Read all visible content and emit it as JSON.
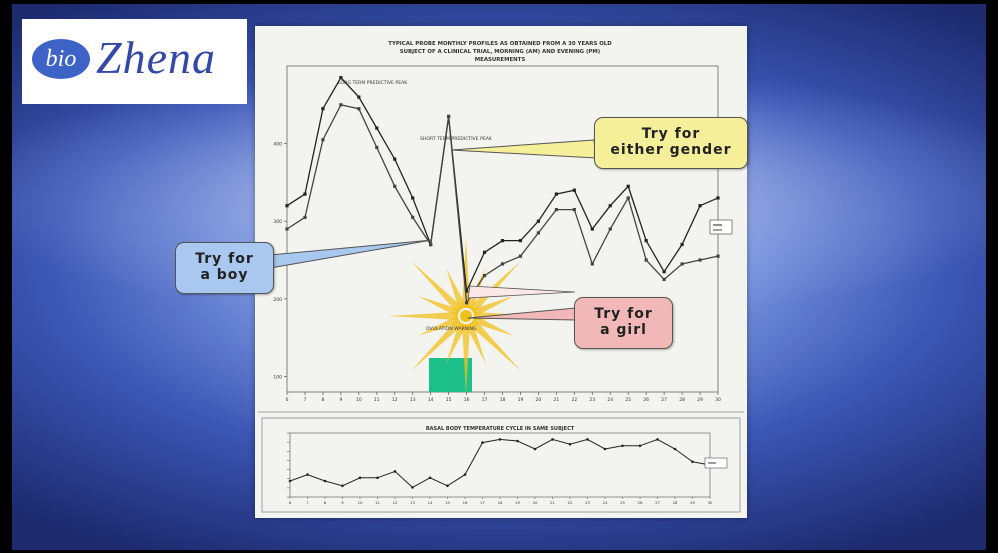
{
  "logo": {
    "bio": "bio",
    "name": "Zhena"
  },
  "callouts": {
    "either": {
      "line1": "Try for",
      "line2": "either gender"
    },
    "boy": {
      "line1": "Try for",
      "line2": "a boy"
    },
    "girl": {
      "line1": "Try for",
      "line2": "a girl"
    }
  },
  "colors": {
    "highlight": "#1ec08a",
    "sun": "#f2c01a",
    "either": "#f5ef9a",
    "boy": "#a8c8ef",
    "girl": "#f2b8b8"
  },
  "chart_data": [
    {
      "type": "line",
      "title": "TYPICAL PROBE MONTHLY PROFILES AS OBTAINED FROM A 30 YEARS OLD SUBJECT OF A CLINICAL TRIAL, MORNING (AM) AND EVENING (PM) MEASUREMENTS",
      "annotations": [
        "LONG TERM PREDICTIVE PEAK",
        "SHORT TERM PREDICTIVE PEAK",
        "OVULATION WARNING"
      ],
      "x": [
        6,
        7,
        8,
        9,
        10,
        11,
        12,
        13,
        14,
        15,
        16,
        17,
        18,
        19,
        20,
        21,
        22,
        23,
        24,
        25,
        26,
        27,
        28,
        29,
        30
      ],
      "ylim": [
        80,
        500
      ],
      "yticks": [
        100,
        200,
        300,
        400
      ],
      "series": [
        {
          "name": "",
          "values": [
            320,
            335,
            445,
            485,
            460,
            420,
            380,
            330,
            270,
            435,
            210,
            260,
            275,
            275,
            300,
            335,
            340,
            290,
            320,
            345,
            275,
            235,
            270,
            320,
            330
          ]
        },
        {
          "name": "",
          "values": [
            290,
            305,
            405,
            450,
            445,
            395,
            345,
            305,
            270,
            435,
            195,
            230,
            245,
            255,
            285,
            315,
            315,
            245,
            290,
            330,
            250,
            225,
            245,
            250,
            255
          ]
        }
      ]
    },
    {
      "type": "line",
      "title": "BASAL BODY TEMPERATURE CYCLE IN SAME SUBJECT",
      "x": [
        6,
        7,
        8,
        9,
        10,
        11,
        12,
        13,
        14,
        15,
        16,
        17,
        18,
        19,
        20,
        21,
        22,
        23,
        24,
        25,
        26,
        27,
        28,
        29,
        30
      ],
      "ylim": [
        96.8,
        98.8
      ],
      "series": [
        {
          "name": "",
          "values": [
            97.3,
            97.5,
            97.3,
            97.15,
            97.4,
            97.4,
            97.6,
            97.1,
            97.4,
            97.15,
            97.5,
            98.5,
            98.6,
            98.55,
            98.3,
            98.6,
            98.45,
            98.6,
            98.3,
            98.4,
            98.4,
            98.6,
            98.3,
            97.9,
            97.8
          ]
        }
      ]
    }
  ]
}
